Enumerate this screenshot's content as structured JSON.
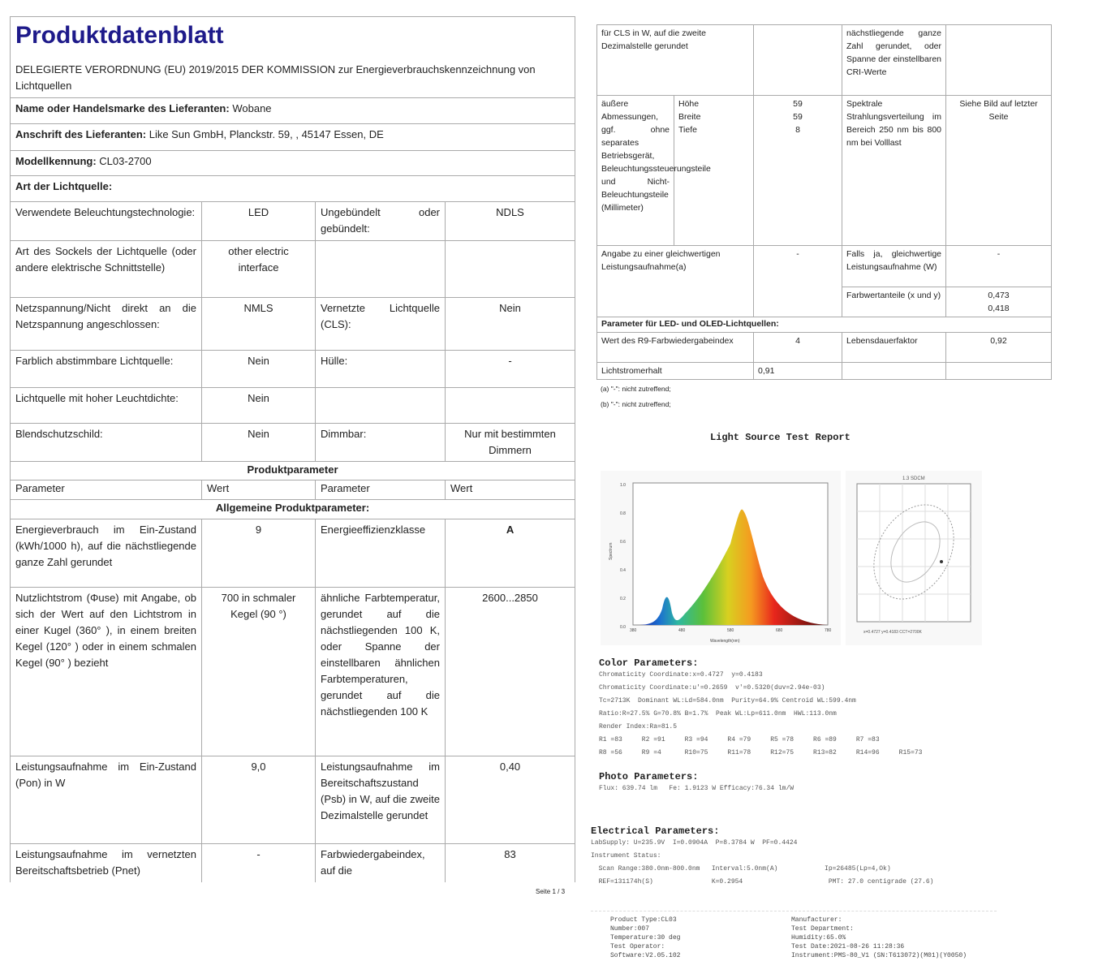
{
  "left": {
    "title": "Produktdatenblatt",
    "regulation": "DELEGIERTE VERORDNUNG (EU) 2019/2015 DER KOMMISSION zur Energieverbrauchskennzeichnung von Lichtquellen",
    "supplier_label": "Name oder Handelsmarke des Lieferanten:",
    "supplier": "Wobane",
    "address_label": "Anschrift des Lieferanten:",
    "address": "Like Sun GmbH, Planckstr. 59, , 45147 Essen, DE",
    "model_label": "Modellkennung:",
    "model": "CL03-2700",
    "type_label": "Art der Lichtquelle:",
    "rows": [
      [
        "Verwendete Beleuchtungstechnologie:",
        "LED",
        "Ungebündelt oder gebündelt:",
        "NDLS"
      ],
      [
        "Art des Sockels der Lichtquelle (oder andere elektrische Schnittstelle)",
        "other electric interface",
        "",
        ""
      ],
      [
        "Netzspannung/Nicht direkt an die Netzspannung angeschlossen:",
        "NMLS",
        "Vernetzte Lichtquelle (CLS):",
        "Nein"
      ],
      [
        "Farblich abstimmbare Lichtquelle:",
        "Nein",
        "Hülle:",
        "-"
      ],
      [
        "Lichtquelle mit hoher Leuchtdichte:",
        "Nein",
        "",
        ""
      ],
      [
        "Blendschutzschild:",
        "Nein",
        "Dimmbar:",
        "Nur mit bestimmten Dimmern"
      ]
    ],
    "product_params": "Produktparameter",
    "header": [
      "Parameter",
      "Wert",
      "Parameter",
      "Wert"
    ],
    "general": "Allgemeine Produktparameter:",
    "rows2": [
      [
        "Energieverbrauch im Ein-Zustand (kWh/1000 h), auf die nächstliegende ganze Zahl gerundet",
        "9",
        "Energieeffizienzklasse",
        "A"
      ],
      [
        "Nutzlichtstrom (Φuse) mit Angabe, ob sich der Wert auf den Lichtstrom in einer Kugel (360° ), in einem breiten Kegel (120° ) oder in einem schmalen Kegel (90° ) bezieht",
        "700 in schmaler Kegel (90 °)",
        "ähnliche Farbtemperatur, gerundet auf die nächstliegenden 100 K, oder Spanne der einstellbaren ähnlichen Farbtemperaturen, gerundet auf die nächstliegenden 100 K",
        "2600...2850"
      ],
      [
        "Leistungsaufnahme im Ein-Zustand (Pon) in W",
        "9,0",
        "Leistungsaufnahme im Bereitschaftszustand (Psb) in W, auf die zweite Dezimalstelle gerundet",
        "0,40"
      ],
      [
        "Leistungsaufnahme im vernetzten Bereitschaftsbetrieb (Pnet)",
        "-",
        "Farbwiedergabeindex, auf die",
        "83"
      ]
    ],
    "page": "Seite 1 / 3"
  },
  "right": {
    "r1": [
      "für CLS in W, auf die zweite Dezimalstelle gerundet",
      "",
      "nächstliegende ganze Zahl gerundet, oder Spanne der einstellbaren CRI-Werte",
      ""
    ],
    "dims_label": "äußere Abmessungen, ggf. ohne separates Betriebsgerät, Beleuchtungssteuerungsteile und Nicht-Beleuchtungsteile (Millimeter)",
    "dims": [
      [
        "Höhe",
        "59"
      ],
      [
        "Breite",
        "59"
      ],
      [
        "Tiefe",
        "8"
      ]
    ],
    "spectral_label": "Spektrale Strahlungsverteilung im Bereich 250 nm bis 800 nm bei Volllast",
    "spectral_value": "Siehe Bild auf letzter Seite",
    "equiv": [
      "Angabe zu einer gleichwertigen Leistungsaufnahme(a)",
      "-",
      "Falls ja, gleichwertige Leistungsaufnahme (W)",
      "-"
    ],
    "chroma_label": "Farbwertanteile (x und y)",
    "chroma_x": "0,473",
    "chroma_y": "0,418",
    "led_header": "Parameter für LED- und OLED-Lichtquellen:",
    "r9": [
      "Wert des R9-Farbwiedergabeindex",
      "4",
      "Lebensdauerfaktor",
      "0,92"
    ],
    "maint": [
      "Lichtstromerhalt",
      "0,91"
    ],
    "notes": [
      "(a) \"-\": nicht zutreffend;",
      "(b) \"-\": nicht zutreffend;"
    ]
  },
  "report": {
    "title": "Light Source Test Report",
    "cie_label": "1.3 SDCM",
    "cie_caption": "x=0.4727 y=0.4183 CCT=2700K",
    "spectrum_ylabel": "Spectrum",
    "spectrum_xlabel": "Wavelength(nm)",
    "spectrum_yticks": [
      "1.0",
      "0.8",
      "0.6",
      "0.4",
      "0.2",
      "0.0"
    ],
    "spectrum_xticks": [
      "380",
      "480",
      "580",
      "680",
      "780"
    ],
    "colors": {
      "spectrum": [
        "#1a1aa0",
        "#1b6fd0",
        "#2eb8a0",
        "#5cc03a",
        "#d8d020",
        "#f59a20",
        "#e8261c",
        "#4a0c0a"
      ]
    },
    "color_h": "Color Parameters:",
    "color_lines": [
      "Chromaticity Coordinate:x=0.4727  y=0.4183",
      "Chromaticity Coordinate:u'=0.2659  v'=0.5320(duv=2.94e-03)",
      "Tc=2713K  Dominant WL:Ld=584.0nm  Purity=64.9% Centroid WL:599.4nm",
      "Ratio:R=27.5% G=70.8% B=1.7%  Peak WL:Lp=611.0nm  HWL:113.0nm",
      "Render Index:Ra=81.5",
      "R1 =83     R2 =91     R3 =94     R4 =79     R5 =78     R6 =89     R7 =83",
      "R8 =56     R9 =4      R10=75     R11=78     R12=75     R13=82     R14=96     R15=73"
    ],
    "photo_h": "Photo Parameters:",
    "photo_lines": [
      "Flux: 639.74 lm   Fe: 1.9123 W Efficacy:76.34 lm/W"
    ],
    "elec_h": "Electrical Parameters:",
    "elec_lines": [
      "LabSupply: U=235.9V  I=0.0904A  P=8.3784 W  PF=0.4424",
      "",
      "Instrument Status:",
      "  Scan Range:380.0nm-800.0nm   Interval:5.0nm(A)            Ip=26485(Lp=4,Ok)",
      "  REF=131174h(S)               K=0.2954                      PMT: 27.0 centigrade (27.6)"
    ],
    "footer_left": [
      "Product Type:CL03",
      "Number:007",
      "Temperature:30 deg",
      "Test Operator:",
      "Software:V2.05.102"
    ],
    "footer_right": [
      "Manufacturer:",
      "Test Department:",
      "Humidity:65.0%",
      "Test Date:2021-08-26 11:28:36",
      "Instrument:PMS-80_V1 (SN:T613072)(M01)(Y0050)"
    ]
  }
}
